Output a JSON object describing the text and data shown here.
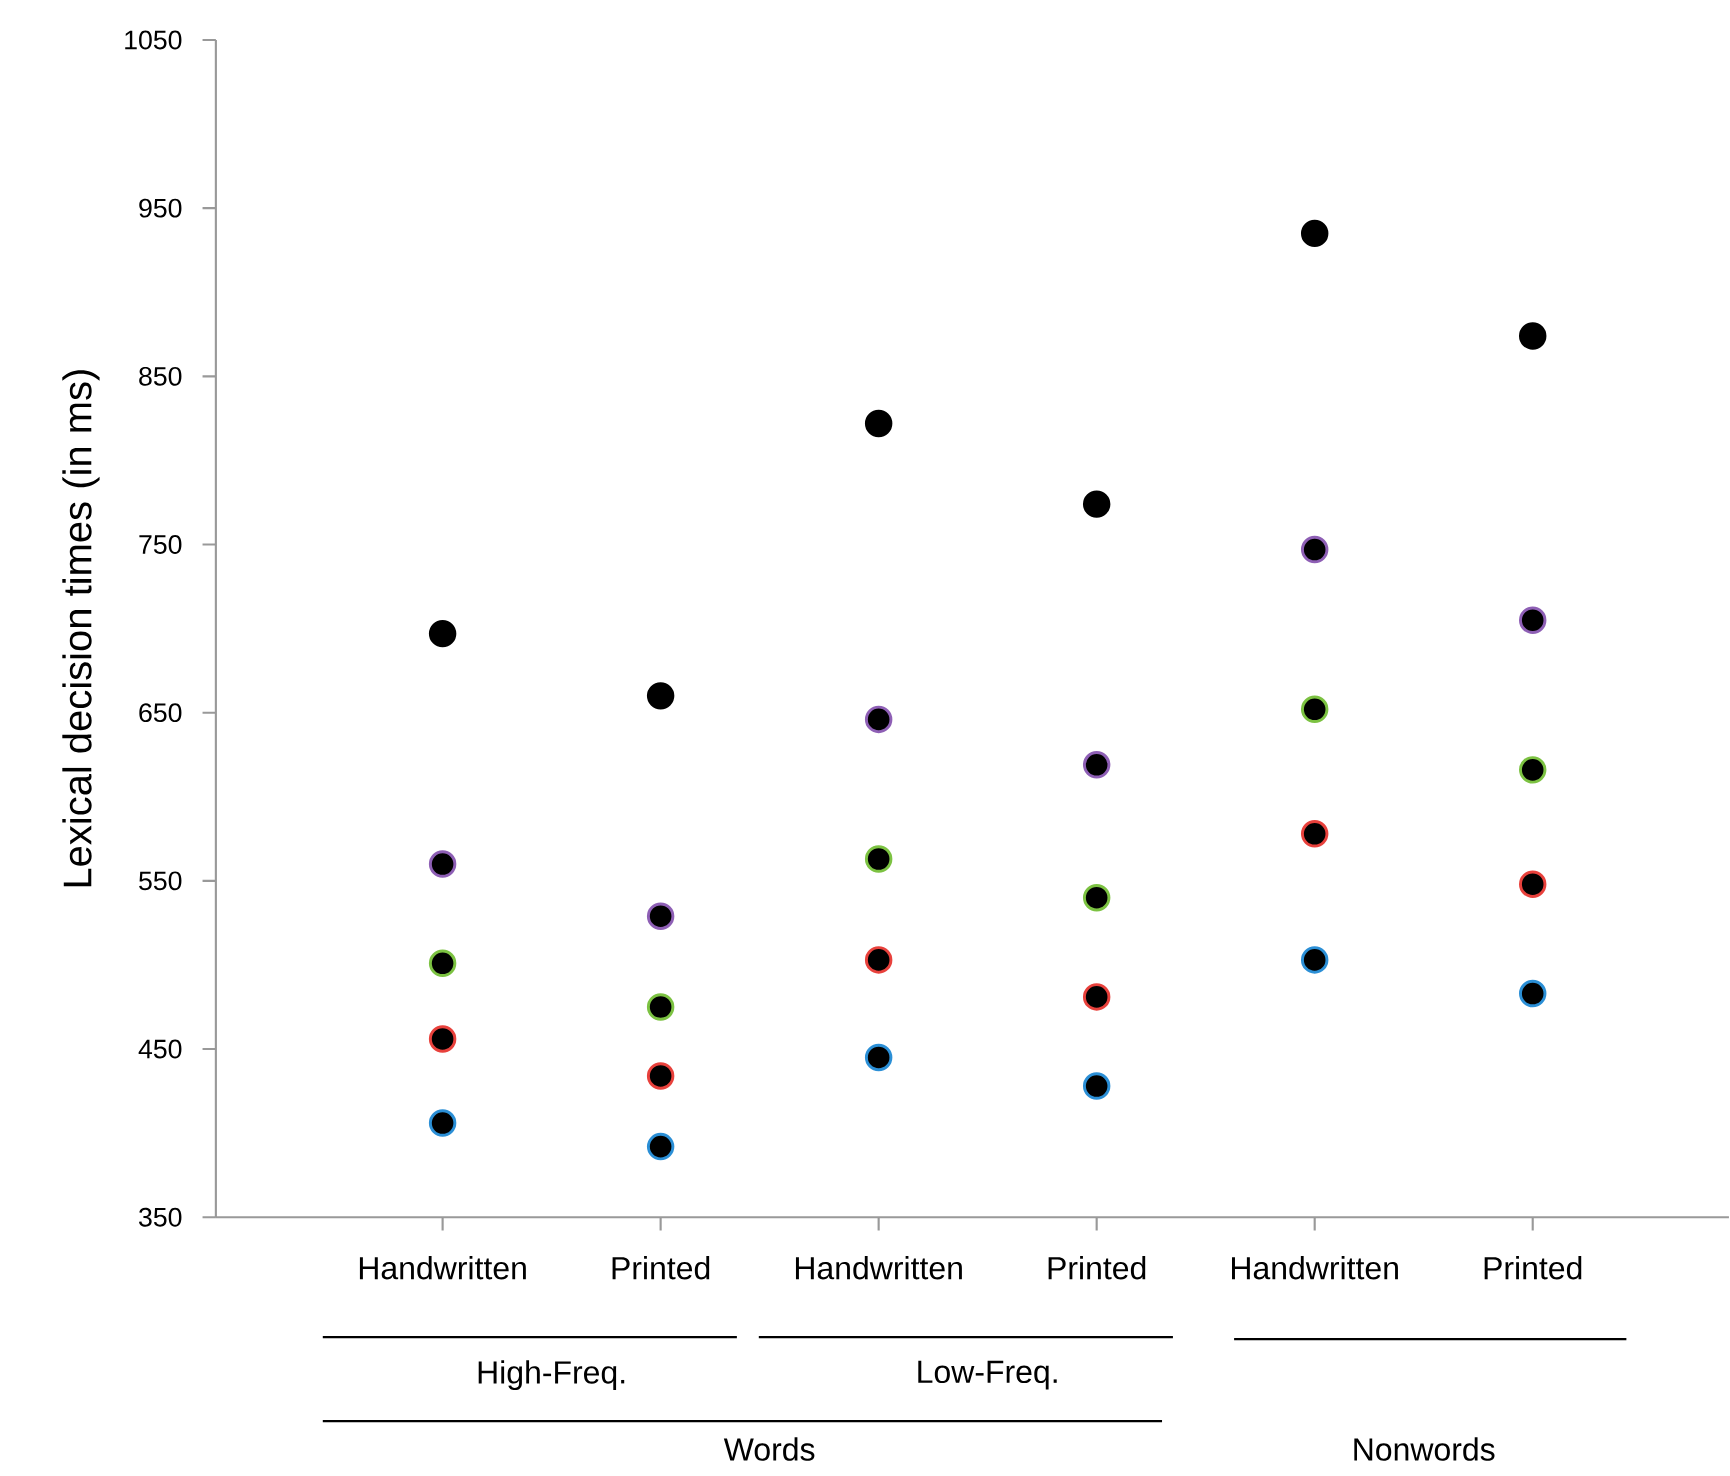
{
  "chart_data": {
    "type": "scatter",
    "ylabel": "Lexical decision times (in ms)",
    "categories": [
      "Handwritten",
      "Printed",
      "Handwritten",
      "Printed",
      "Handwritten",
      "Printed"
    ],
    "series": [
      {
        "color": "#000000",
        "values": [
          697,
          660,
          822,
          774,
          935,
          874
        ]
      },
      {
        "color": "#8e5fb5",
        "values": [
          560,
          529,
          646,
          619,
          747,
          705
        ]
      },
      {
        "color": "#7cc242",
        "values": [
          501,
          475,
          563,
          540,
          652,
          616
        ]
      },
      {
        "color": "#e8413c",
        "values": [
          456,
          434,
          503,
          481,
          578,
          548
        ]
      },
      {
        "color": "#2b8fd6",
        "values": [
          406,
          392,
          445,
          428,
          503,
          483
        ]
      }
    ],
    "ylim": [
      350,
      1050
    ],
    "yticks": [
      350,
      450,
      550,
      650,
      750,
      850,
      950,
      1050
    ],
    "marker": "circle",
    "annotations": [
      "High-Freq.",
      "Low-Freq.",
      "Words",
      "Nonwords"
    ]
  }
}
